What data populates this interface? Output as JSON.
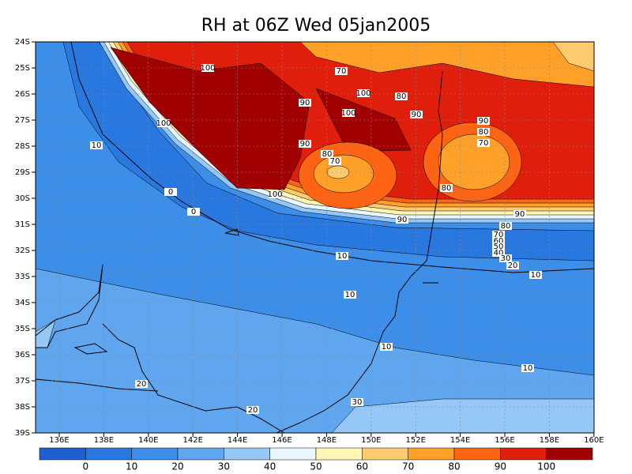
{
  "title": "RH at 06Z Wed 05jan2005",
  "lat_labels": [
    "24S",
    "25S",
    "26S",
    "27S",
    "28S",
    "29S",
    "30S",
    "31S",
    "32S",
    "33S",
    "34S",
    "35S",
    "36S",
    "37S",
    "38S",
    "39S"
  ],
  "lon_labels": [
    "136E",
    "138E",
    "140E",
    "142E",
    "144E",
    "146E",
    "148E",
    "150E",
    "152E",
    "154E",
    "156E",
    "158E",
    "160E"
  ],
  "colorbar": {
    "levels": [
      0,
      10,
      20,
      30,
      40,
      50,
      60,
      70,
      80,
      90,
      100
    ],
    "colors": [
      "#1f60cf",
      "#2878e0",
      "#3c8ee8",
      "#5fa6ef",
      "#96c8f7",
      "#e8f6ff",
      "#fff6b4",
      "#ffcb6e",
      "#ffa028",
      "#ff6414",
      "#e01e0c",
      "#a00000"
    ]
  },
  "contour_labels": [
    "100",
    "70",
    "100",
    "80",
    "90",
    "100",
    "90",
    "100",
    "90",
    "80",
    "70",
    "90",
    "80",
    "70",
    "10",
    "0",
    "0",
    "100",
    "80",
    "90",
    "90",
    "80",
    "70",
    "60",
    "50",
    "40",
    "30",
    "20",
    "10",
    "10",
    "10",
    "10",
    "10",
    "20",
    "30",
    "20"
  ]
}
